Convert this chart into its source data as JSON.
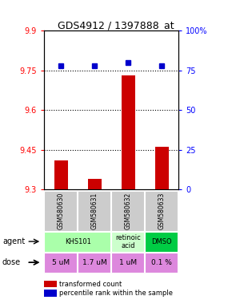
{
  "title": "GDS4912 / 1397888_at",
  "samples": [
    "GSM580630",
    "GSM580631",
    "GSM580632",
    "GSM580633"
  ],
  "bar_values": [
    9.41,
    9.34,
    9.73,
    9.46
  ],
  "dot_values": [
    78,
    78,
    80,
    78
  ],
  "ylim_left": [
    9.3,
    9.9
  ],
  "ylim_right": [
    0,
    100
  ],
  "yticks_left": [
    9.3,
    9.45,
    9.6,
    9.75,
    9.9
  ],
  "yticks_right": [
    0,
    25,
    50,
    75,
    100
  ],
  "ytick_labels_right": [
    "0",
    "25",
    "50",
    "75",
    "100%"
  ],
  "bar_color": "#cc0000",
  "dot_color": "#0000cc",
  "hlines": [
    9.45,
    9.6,
    9.75
  ],
  "agent_defs": [
    {
      "cols": [
        0,
        1
      ],
      "text": "KHS101",
      "color": "#aaffaa"
    },
    {
      "cols": [
        2,
        2
      ],
      "text": "retinoic\nacid",
      "color": "#ccffcc"
    },
    {
      "cols": [
        3,
        3
      ],
      "text": "DMSO",
      "color": "#00cc44"
    }
  ],
  "dose_labels": [
    "5 uM",
    "1.7 uM",
    "1 uM",
    "0.1 %"
  ],
  "dose_color": "#dd88dd",
  "sample_box_color": "#cccccc",
  "legend_bar_label": "transformed count",
  "legend_dot_label": "percentile rank within the sample"
}
